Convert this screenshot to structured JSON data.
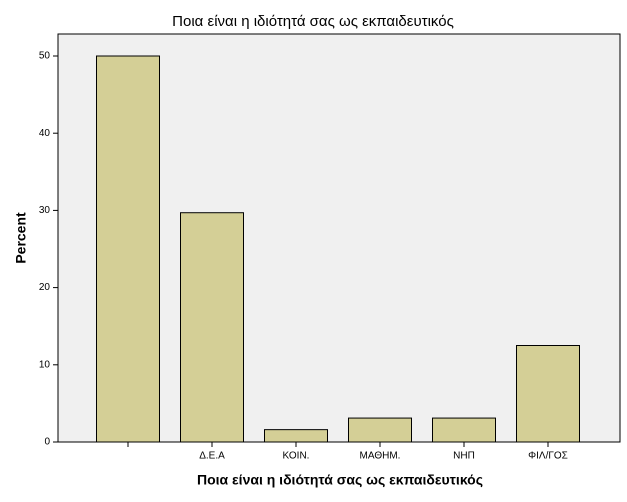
{
  "chart_data": {
    "type": "bar",
    "title": "Ποια είναι η ιδιότητά σας ως εκπαιδευτικός",
    "x_label": "Ποια είναι η ιδιότητά σας ως εκπαιδευτικός",
    "y_label": "Percent",
    "categories": [
      null,
      "Δ.Ε.Α",
      "ΚΟΙΝ.",
      "ΜΑΘΗΜ.",
      "ΝΗΠ",
      "ΦΙΛ/ΓΟΣ"
    ],
    "values": [
      50,
      29.7,
      1.6,
      3.1,
      3.1,
      12.5
    ],
    "color": "#d4cf96",
    "ylim": [
      0,
      52.85
    ],
    "yticks": [
      0,
      10,
      20,
      30,
      40,
      50
    ],
    "grid": false
  }
}
